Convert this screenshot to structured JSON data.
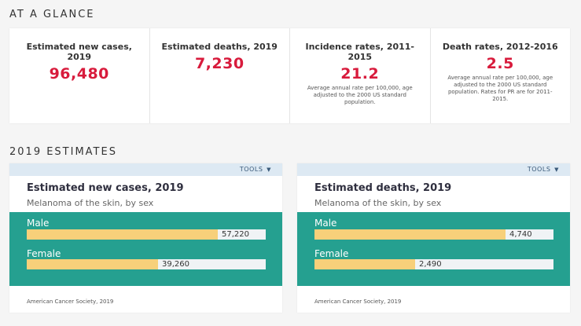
{
  "glance": {
    "title": "AT A GLANCE",
    "stats": [
      {
        "label": "Estimated new cases, 2019",
        "value": "96,480",
        "note": ""
      },
      {
        "label": "Estimated deaths, 2019",
        "value": "7,230",
        "note": ""
      },
      {
        "label": "Incidence rates, 2011-2015",
        "value": "21.2",
        "note": "Average annual rate per 100,000, age adjusted to the 2000 US standard population."
      },
      {
        "label": "Death rates, 2012-2016",
        "value": "2.5",
        "note": "Average annual rate per 100,000, age adjusted to the 2000 US standard population. Rates for PR are for 2011-2015."
      }
    ]
  },
  "estimates": {
    "title": "2019 ESTIMATES",
    "cards": [
      {
        "tools": "TOOLS",
        "title": "Estimated new cases, 2019",
        "subtitle": "Melanoma of the skin, by sex",
        "source": "American Cancer Society, 2019",
        "bars": [
          {
            "label": "Male",
            "value": "57,220",
            "fraction": 0.8
          },
          {
            "label": "Female",
            "value": "39,260",
            "fraction": 0.549
          }
        ]
      },
      {
        "tools": "TOOLS",
        "title": "Estimated deaths, 2019",
        "subtitle": "Melanoma of the skin, by sex",
        "source": "American Cancer Society, 2019",
        "bars": [
          {
            "label": "Male",
            "value": "4,740",
            "fraction": 0.8
          },
          {
            "label": "Female",
            "value": "2,490",
            "fraction": 0.42
          }
        ]
      }
    ]
  },
  "colors": {
    "accent_red": "#d81b3c",
    "chart_teal": "#25a090",
    "bar_yellow": "#f7d07a",
    "tools_blue": "#dde9f3"
  },
  "chart_data": [
    {
      "type": "bar",
      "title": "Estimated new cases, 2019",
      "categories": [
        "Male",
        "Female"
      ],
      "values": [
        57220,
        39260
      ]
    },
    {
      "type": "bar",
      "title": "Estimated deaths, 2019",
      "categories": [
        "Male",
        "Female"
      ],
      "values": [
        4740,
        2490
      ]
    }
  ]
}
